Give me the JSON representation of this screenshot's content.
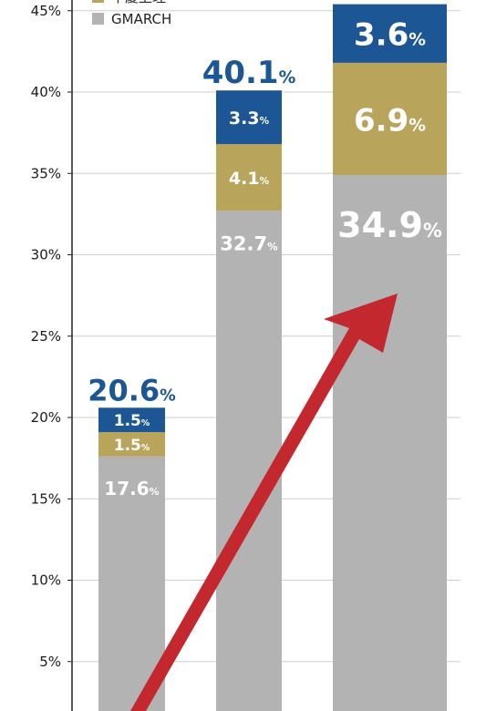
{
  "chart_data": {
    "type": "bar",
    "stacked": true,
    "ylim": [
      0,
      45
    ],
    "yticks": [
      "5%",
      "10%",
      "15%",
      "20%",
      "25%",
      "30%",
      "35%",
      "40%",
      "45%"
    ],
    "grid": true,
    "legend": [
      {
        "name": "早慶上理",
        "color": "#b8a45a"
      },
      {
        "name": "GMARCH",
        "color": "#b3b3b3"
      }
    ],
    "unit_suffix": "%",
    "bars": [
      {
        "total": 20.6,
        "total_label": "20.6",
        "segments": [
          {
            "value": 17.6,
            "label": "17.6",
            "color": "#b3b3b3"
          },
          {
            "value": 1.5,
            "label": "1.5",
            "color": "#b8a45a"
          },
          {
            "value": 1.5,
            "label": "1.5",
            "color": "#1c5694"
          }
        ]
      },
      {
        "total": 40.1,
        "total_label": "40.1",
        "segments": [
          {
            "value": 32.7,
            "label": "32.7",
            "color": "#b3b3b3"
          },
          {
            "value": 4.1,
            "label": "4.1",
            "color": "#b8a45a"
          },
          {
            "value": 3.3,
            "label": "3.3",
            "color": "#1c5694"
          }
        ]
      },
      {
        "total": 45.4,
        "total_label": "",
        "segments": [
          {
            "value": 34.9,
            "label": "34.9",
            "color": "#b3b3b3"
          },
          {
            "value": 6.9,
            "label": "6.9",
            "color": "#b8a45a"
          },
          {
            "value": 3.6,
            "label": "3.6",
            "color": "#1c5694"
          }
        ]
      }
    ],
    "colors": {
      "navy": "#1c5694",
      "gold": "#b8a45a",
      "gray": "#b3b3b3",
      "arrow": "#c3282e",
      "total_text": "#1c5694"
    }
  }
}
